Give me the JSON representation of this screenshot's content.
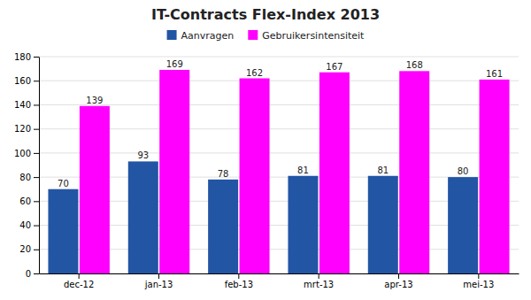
{
  "chart_data": {
    "type": "bar",
    "title": "IT-Contracts Flex-Index 2013",
    "categories": [
      "dec-12",
      "jan-13",
      "feb-13",
      "mrt-13",
      "apr-13",
      "mei-13"
    ],
    "series": [
      {
        "name": "Aanvragen",
        "color": "#2255A4",
        "values": [
          70,
          93,
          78,
          81,
          81,
          80
        ]
      },
      {
        "name": "Gebruikersintensiteit",
        "color": "#FF00FF",
        "values": [
          139,
          169,
          162,
          167,
          168,
          161
        ]
      }
    ],
    "ylim": [
      0,
      180
    ],
    "yticks": [
      0,
      20,
      40,
      60,
      80,
      100,
      120,
      140,
      160,
      180
    ],
    "grid": true,
    "legend": "top",
    "data_labels": true
  }
}
